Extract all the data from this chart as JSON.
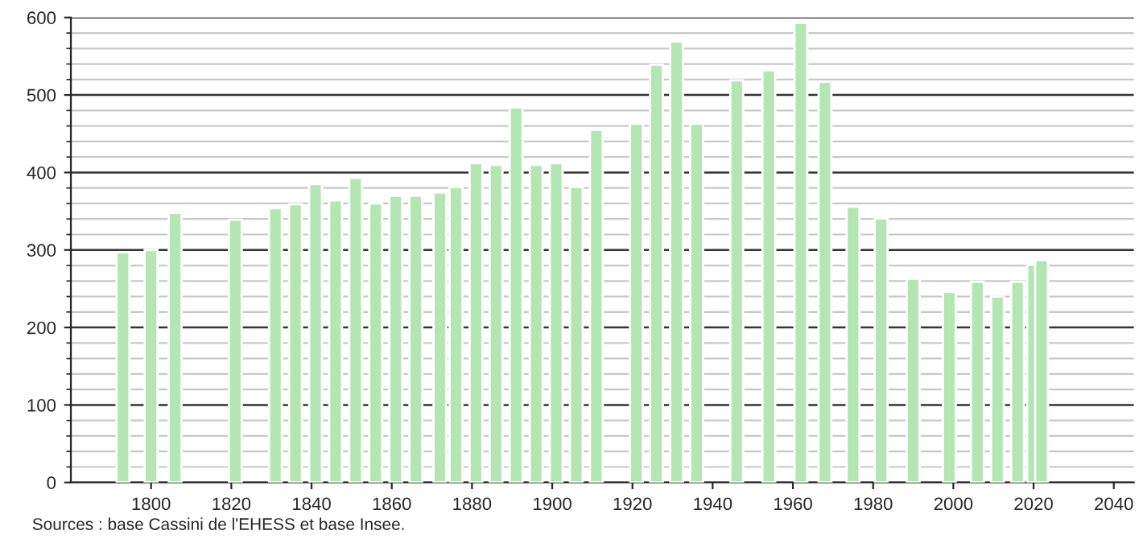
{
  "chart_data": {
    "type": "bar",
    "x": [
      1793,
      1800,
      1806,
      1821,
      1831,
      1836,
      1841,
      1846,
      1851,
      1856,
      1861,
      1866,
      1872,
      1876,
      1881,
      1886,
      1891,
      1896,
      1901,
      1906,
      1911,
      1921,
      1926,
      1931,
      1936,
      1946,
      1954,
      1962,
      1968,
      1975,
      1982,
      1990,
      1999,
      2006,
      2011,
      2016,
      2020,
      2022
    ],
    "values": [
      297,
      300,
      348,
      339,
      354,
      359,
      385,
      364,
      393,
      360,
      370,
      370,
      374,
      381,
      412,
      410,
      484,
      410,
      412,
      381,
      455,
      463,
      539,
      569,
      463,
      519,
      532,
      593,
      517,
      356,
      341,
      263,
      246,
      259,
      240,
      259,
      281,
      287
    ],
    "color": "#b3e6b3",
    "xlim": [
      1780,
      2045
    ],
    "xticks": [
      1800,
      1820,
      1840,
      1860,
      1880,
      1900,
      1920,
      1940,
      1960,
      1980,
      2000,
      2020,
      2040
    ],
    "ylim": [
      0,
      600
    ],
    "yticks": [
      0,
      100,
      200,
      300,
      400,
      500,
      600
    ],
    "grid": "y",
    "legend": false,
    "annotations": [
      "Sources : base Cassini de l'EHESS et base Insee."
    ]
  }
}
